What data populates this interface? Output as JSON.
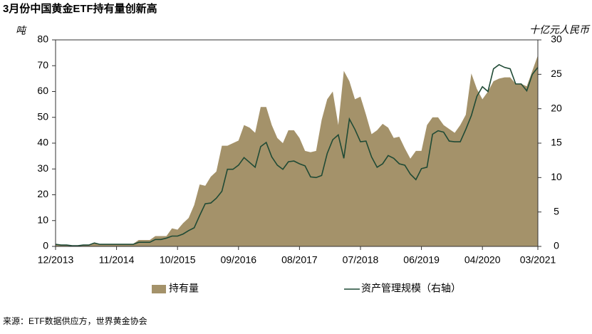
{
  "chart_data": {
    "type": "area",
    "title": "3月份中国黄金ETF持有量创新高",
    "y_label": "吨",
    "y2_label": "十亿元人民币",
    "source": "来源：ETF数据供应方，世界黄金协会",
    "categories": [
      "12/2013",
      null,
      null,
      null,
      null,
      null,
      null,
      null,
      null,
      null,
      null,
      "11/2014",
      null,
      null,
      null,
      null,
      null,
      null,
      null,
      null,
      null,
      null,
      "10/2015",
      null,
      null,
      null,
      null,
      null,
      null,
      null,
      null,
      null,
      null,
      "09/2016",
      null,
      null,
      null,
      null,
      null,
      null,
      null,
      null,
      null,
      null,
      "08/2017",
      null,
      null,
      null,
      null,
      null,
      null,
      null,
      null,
      null,
      null,
      "07/2018",
      null,
      null,
      null,
      null,
      null,
      null,
      null,
      null,
      null,
      null,
      "06/2019",
      null,
      null,
      null,
      null,
      null,
      null,
      null,
      null,
      null,
      null,
      "04/2020",
      null,
      null,
      null,
      null,
      null,
      null,
      null,
      null,
      null,
      "03/2021"
    ],
    "series": [
      {
        "name": "持有量",
        "type": "area",
        "color": "#a4926a",
        "values": [
          1,
          0.5,
          0.5,
          0.3,
          0.3,
          0.5,
          0.5,
          1.5,
          0.8,
          0.8,
          0.8,
          0.8,
          0.8,
          0.8,
          1,
          2.5,
          2.5,
          2.5,
          4,
          4,
          4,
          7,
          6.5,
          9,
          11,
          16,
          24,
          23.5,
          27,
          29,
          39,
          39,
          40,
          41,
          47,
          46,
          44,
          54,
          54,
          47,
          42,
          40,
          45,
          45,
          42,
          37,
          36.5,
          37,
          49,
          57,
          60,
          47,
          68,
          64,
          57,
          58,
          51,
          43.5,
          45,
          47.5,
          46,
          42,
          42.5,
          38,
          34,
          37,
          37,
          47,
          50,
          50,
          47,
          45.5,
          44,
          47,
          51,
          67,
          61,
          57,
          60,
          64,
          65,
          65.5,
          65.5,
          63,
          63,
          62,
          68,
          74
        ]
      },
      {
        "name": "资产管理规模（右轴）",
        "type": "line",
        "axis": "y2",
        "color": "#1f4a35",
        "values": [
          0.3,
          0.2,
          0.2,
          0.1,
          0.1,
          0.2,
          0.2,
          0.5,
          0.3,
          0.3,
          0.3,
          0.3,
          0.3,
          0.3,
          0.3,
          0.6,
          0.6,
          0.6,
          1,
          1,
          1.2,
          1.5,
          1.5,
          1.8,
          2.3,
          2.7,
          4.5,
          6.2,
          6.3,
          7,
          8,
          11.2,
          11.2,
          11.8,
          12.9,
          12.2,
          11.5,
          14.5,
          15.1,
          13,
          11.8,
          11.2,
          12.3,
          12.4,
          12,
          11.7,
          10.1,
          10,
          10.3,
          13.5,
          15.5,
          16.2,
          12.8,
          18.5,
          17,
          15.2,
          15.3,
          13,
          11.5,
          12,
          13.2,
          12.8,
          12,
          11.8,
          10.5,
          9.7,
          11.3,
          11.5,
          16.3,
          16.8,
          16.6,
          15.3,
          15.2,
          15.2,
          17,
          19,
          21.8,
          23.2,
          22.5,
          25.8,
          26.4,
          26,
          25.8,
          23.6,
          23.6,
          22.6,
          25,
          26
        ]
      }
    ],
    "ylim": [
      0,
      80
    ],
    "yticks": [
      0,
      10,
      20,
      30,
      40,
      50,
      60,
      70,
      80
    ],
    "y2lim": [
      0,
      30
    ],
    "y2ticks": [
      0,
      5,
      10,
      15,
      20,
      25,
      30
    ]
  }
}
